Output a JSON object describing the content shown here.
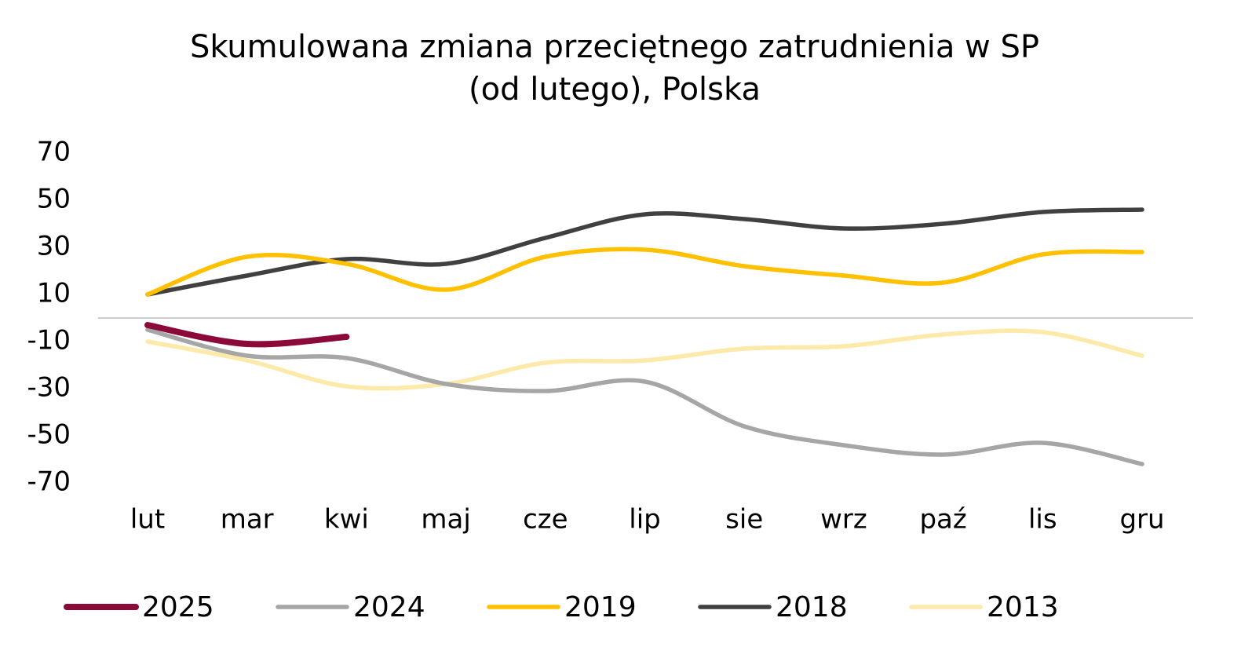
{
  "chart_data": {
    "type": "line",
    "title": [
      "Skumulowana zmiana przeciętnego zatrudnienia w SP",
      "(od lutego), Polska"
    ],
    "categories": [
      "lut",
      "mar",
      "kwi",
      "maj",
      "cze",
      "lip",
      "sie",
      "wrz",
      "paź",
      "lis",
      "gru"
    ],
    "series": [
      {
        "name": "2025",
        "color": "#8b0a3a",
        "values": [
          -3,
          -11,
          -8,
          null,
          null,
          null,
          null,
          null,
          null,
          null,
          null
        ]
      },
      {
        "name": "2024",
        "color": "#a6a6a6",
        "values": [
          -5,
          -16,
          -17,
          -28,
          -31,
          -27,
          -46,
          -54,
          -58,
          -53,
          -62
        ]
      },
      {
        "name": "2019",
        "color": "#ffc000",
        "values": [
          10,
          26,
          23,
          12,
          26,
          29,
          22,
          18,
          15,
          27,
          28
        ]
      },
      {
        "name": "2018",
        "color": "#404040",
        "values": [
          10,
          18,
          25,
          23,
          34,
          44,
          42,
          38,
          40,
          45,
          46
        ]
      },
      {
        "name": "2013",
        "color": "#fde9a9",
        "values": [
          -10,
          -18,
          -29,
          -28,
          -19,
          -18,
          -13,
          -12,
          -7,
          -6,
          -16
        ]
      }
    ],
    "ylim": [
      -70,
      70
    ],
    "yticks": [
      70,
      50,
      30,
      10,
      -10,
      -30,
      -50,
      -70
    ],
    "grid": false,
    "legend": "bottom"
  }
}
